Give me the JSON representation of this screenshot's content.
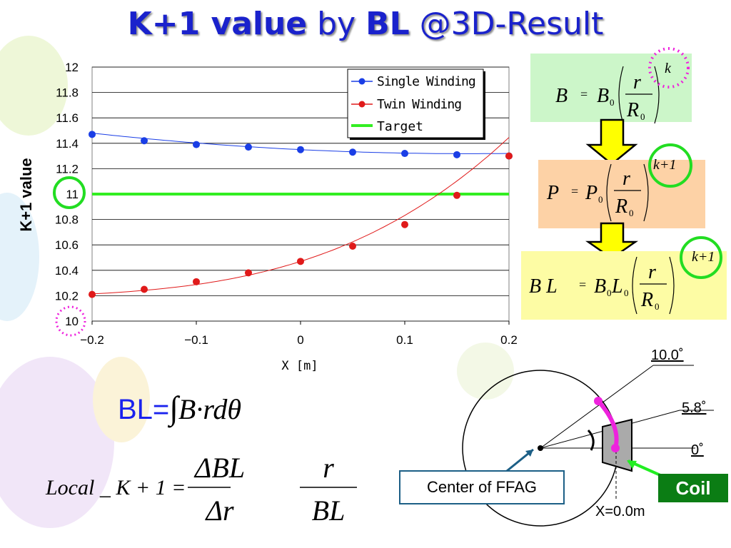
{
  "title": {
    "part1": "K+1 value",
    "part2": " by ",
    "part3": "BL",
    "part4": " @3D-Result"
  },
  "chart_data": {
    "type": "line",
    "title": "",
    "xlabel": "X [m]",
    "ylabel": "K+1 value",
    "xlim": [
      -0.2,
      0.2
    ],
    "ylim": [
      10,
      12
    ],
    "x_ticks": [
      "-0.2",
      "-0.1",
      "0",
      "0.1",
      "0.2"
    ],
    "y_ticks": [
      "10",
      "10.2",
      "10.4",
      "10.6",
      "10.8",
      "11",
      "11.2",
      "11.4",
      "11.6",
      "11.8",
      "12"
    ],
    "grid": true,
    "legend": "top-right",
    "series": [
      {
        "name": "Single Winding",
        "color": "#1a3ee6",
        "x": [
          -0.2,
          -0.15,
          -0.1,
          -0.05,
          0,
          0.05,
          0.1,
          0.15,
          0.2
        ],
        "values": [
          11.47,
          11.42,
          11.39,
          11.37,
          11.35,
          11.33,
          11.32,
          11.31,
          11.3
        ]
      },
      {
        "name": "Twin Winding",
        "color": "#e01a1a",
        "x": [
          -0.2,
          -0.15,
          -0.1,
          -0.05,
          0,
          0.05,
          0.1,
          0.15,
          0.2
        ],
        "values": [
          10.21,
          10.25,
          10.31,
          10.38,
          10.47,
          10.59,
          10.76,
          10.99,
          11.3
        ]
      },
      {
        "name": "Target",
        "color": "#33ee22",
        "x": [
          -0.2,
          0.2
        ],
        "values": [
          11,
          11
        ]
      }
    ]
  },
  "formulas": {
    "b_eq": {
      "lhs": "B",
      "eq": "=",
      "c": "B",
      "sub": "0",
      "num": "r",
      "den": "R",
      "densub": "0",
      "exp": "k"
    },
    "p_eq": {
      "lhs": "P",
      "eq": "=",
      "c": "P",
      "sub": "0",
      "num": "r",
      "den": "R",
      "densub": "0",
      "exp": "k+1"
    },
    "bl_eq": {
      "lhs": "B L",
      "eq": "=",
      "c": "B",
      "sub": "0",
      "c2": "L",
      "sub2": "0",
      "num": "r",
      "den": "R",
      "densub": "0",
      "exp": "k+1"
    },
    "bl_integral": {
      "prefix": "BL=",
      "body": "B·rdθ"
    },
    "local_k": {
      "lhs": "Local _ K + 1 =",
      "num1": "ΔBL",
      "den1": "Δr",
      "num2": "r",
      "den2": "BL"
    }
  },
  "diagram": {
    "angle_10": "10.0˚",
    "angle_58": "5.8˚",
    "angle_0": "0˚",
    "center_label": "Center of FFAG",
    "coil_label": "Coil",
    "x_label": "X=0.0m"
  },
  "colors": {
    "title": "#1a22cc",
    "magenta": "#ee22dd",
    "green_circle": "#22dd22",
    "arrow_yellow": "#ffff00"
  }
}
